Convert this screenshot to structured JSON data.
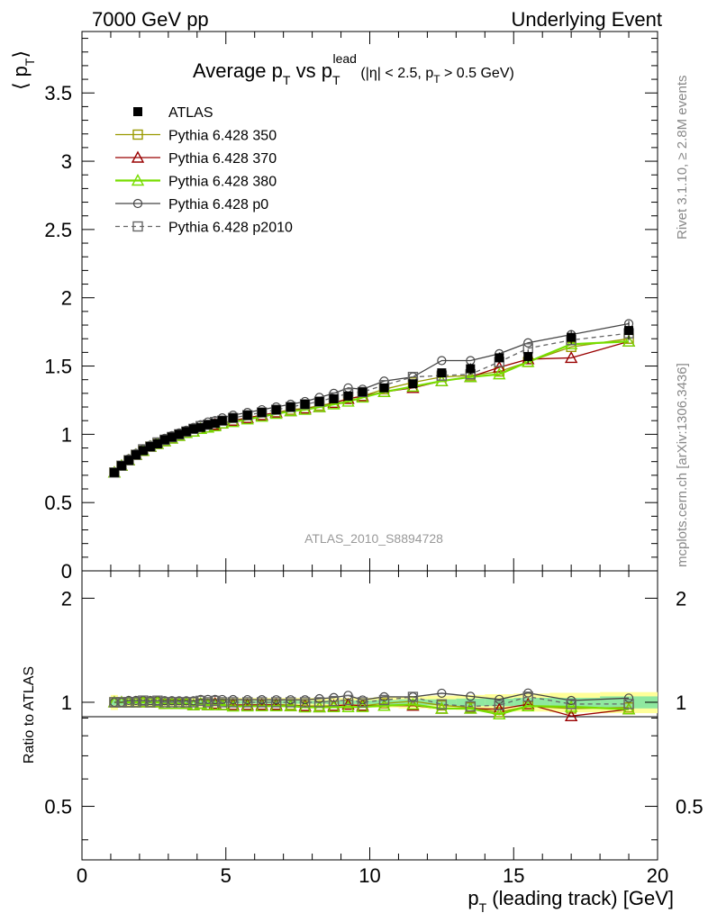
{
  "header": {
    "left": "7000 GeV pp",
    "right": "Underlying Event"
  },
  "side_labels": {
    "rivet": "Rivet 3.1.10, ≥ 2.8M events",
    "mcplots": "mcplots.cern.ch [arXiv:1306.3436]"
  },
  "chart_data": [
    {
      "type": "line",
      "panel": "main",
      "title_parts": {
        "main": "Average p",
        "main_sub": "T",
        "vs": " vs p",
        "vs_sub": "T",
        "vs_sup": "lead",
        "cuts_a": " (|η| < 2.5, p",
        "cuts_sub": "T",
        "cuts_b": " > 0.5 GeV)"
      },
      "ylabel": "⟨ p",
      "ylabel_sub": "T",
      "ylabel_close": "⟩",
      "watermark": "ATLAS_2010_S8894728",
      "xlim": [
        0,
        20
      ],
      "ylim": [
        0,
        3.95
      ],
      "xticks": [
        "0",
        "5",
        "10",
        "15",
        "20"
      ],
      "yticks": [
        "0",
        "0.5",
        "1",
        "1.5",
        "2",
        "2.5",
        "3",
        "3.5"
      ],
      "x": [
        1.125,
        1.375,
        1.625,
        1.875,
        2.125,
        2.375,
        2.625,
        2.875,
        3.125,
        3.375,
        3.625,
        3.875,
        4.125,
        4.375,
        4.625,
        4.875,
        5.25,
        5.75,
        6.25,
        6.75,
        7.25,
        7.75,
        8.25,
        8.75,
        9.25,
        9.75,
        10.5,
        11.5,
        12.5,
        13.5,
        14.5,
        15.5,
        17,
        19
      ],
      "series": [
        {
          "name": "ATLAS",
          "color": "#000000",
          "marker": "filled-square",
          "values": [
            0.72,
            0.77,
            0.81,
            0.85,
            0.88,
            0.91,
            0.93,
            0.96,
            0.98,
            1.0,
            1.02,
            1.04,
            1.05,
            1.07,
            1.08,
            1.1,
            1.12,
            1.14,
            1.16,
            1.18,
            1.2,
            1.22,
            1.24,
            1.26,
            1.28,
            1.31,
            1.34,
            1.37,
            1.45,
            1.48,
            1.56,
            1.57,
            1.71,
            1.76
          ],
          "errors": [
            0.01,
            0.01,
            0.01,
            0.01,
            0.01,
            0.01,
            0.01,
            0.01,
            0.01,
            0.01,
            0.01,
            0.01,
            0.01,
            0.01,
            0.01,
            0.01,
            0.01,
            0.01,
            0.01,
            0.01,
            0.01,
            0.01,
            0.01,
            0.02,
            0.02,
            0.02,
            0.02,
            0.03,
            0.03,
            0.04,
            0.04,
            0.05,
            0.05,
            0.07
          ]
        },
        {
          "name": "Pythia 6.428 350",
          "color": "#999900",
          "marker": "open-square",
          "dashed": false,
          "values": [
            0.72,
            0.77,
            0.81,
            0.85,
            0.88,
            0.91,
            0.93,
            0.95,
            0.97,
            0.99,
            1.01,
            1.02,
            1.04,
            1.05,
            1.06,
            1.08,
            1.1,
            1.12,
            1.14,
            1.16,
            1.18,
            1.19,
            1.21,
            1.23,
            1.26,
            1.28,
            1.33,
            1.38,
            1.42,
            1.43,
            1.46,
            1.53,
            1.64,
            1.7
          ]
        },
        {
          "name": "Pythia 6.428 370",
          "color": "#990000",
          "marker": "open-triangle",
          "dashed": false,
          "values": [
            0.72,
            0.77,
            0.81,
            0.85,
            0.88,
            0.91,
            0.93,
            0.95,
            0.97,
            0.99,
            1.01,
            1.02,
            1.04,
            1.05,
            1.07,
            1.08,
            1.1,
            1.12,
            1.14,
            1.16,
            1.17,
            1.19,
            1.2,
            1.23,
            1.26,
            1.28,
            1.31,
            1.34,
            1.39,
            1.42,
            1.49,
            1.55,
            1.56,
            1.68
          ]
        },
        {
          "name": "Pythia 6.428 380",
          "color": "#77dd00",
          "marker": "open-triangle",
          "dashed": false,
          "values": [
            0.72,
            0.77,
            0.81,
            0.85,
            0.88,
            0.91,
            0.93,
            0.95,
            0.97,
            0.99,
            1.01,
            1.02,
            1.04,
            1.05,
            1.06,
            1.08,
            1.09,
            1.11,
            1.13,
            1.15,
            1.17,
            1.18,
            1.2,
            1.22,
            1.24,
            1.27,
            1.31,
            1.35,
            1.39,
            1.42,
            1.44,
            1.53,
            1.66,
            1.68
          ]
        },
        {
          "name": "Pythia 6.428 p0",
          "color": "#444444",
          "marker": "open-circle",
          "dashed": false,
          "values": [
            0.72,
            0.77,
            0.82,
            0.86,
            0.89,
            0.92,
            0.94,
            0.97,
            0.99,
            1.01,
            1.03,
            1.05,
            1.07,
            1.09,
            1.1,
            1.12,
            1.14,
            1.16,
            1.18,
            1.2,
            1.22,
            1.24,
            1.27,
            1.3,
            1.34,
            1.33,
            1.39,
            1.42,
            1.54,
            1.54,
            1.59,
            1.67,
            1.73,
            1.81
          ]
        },
        {
          "name": "Pythia 6.428 p2010",
          "color": "#666666",
          "marker": "open-square",
          "dashed": true,
          "values": [
            0.72,
            0.77,
            0.81,
            0.85,
            0.89,
            0.91,
            0.94,
            0.96,
            0.98,
            1.0,
            1.02,
            1.04,
            1.06,
            1.07,
            1.09,
            1.1,
            1.12,
            1.14,
            1.16,
            1.18,
            1.2,
            1.22,
            1.24,
            1.27,
            1.3,
            1.31,
            1.36,
            1.42,
            1.43,
            1.44,
            1.53,
            1.63,
            1.69,
            1.74
          ]
        }
      ]
    },
    {
      "type": "line",
      "panel": "ratio",
      "ylabel": "Ratio to ATLAS",
      "xlabel": "p",
      "xlabel_sub": "T",
      "xlabel_rest": " (leading track) [GeV]",
      "xlim": [
        0,
        20
      ],
      "ylim": [
        0.35,
        2.4
      ],
      "log_y": true,
      "xticks": [
        "0",
        "5",
        "10",
        "15",
        "20"
      ],
      "yticks": [
        "0.5",
        "1",
        "2"
      ],
      "band_inner_color": "#8fe8a0",
      "band_outer_color": "#ffff99",
      "band_inner": [
        0.02,
        0.02,
        0.01,
        0.01,
        0.01,
        0.01,
        0.01,
        0.01,
        0.01,
        0.01,
        0.01,
        0.01,
        0.01,
        0.01,
        0.01,
        0.01,
        0.01,
        0.01,
        0.01,
        0.01,
        0.01,
        0.01,
        0.01,
        0.012,
        0.012,
        0.012,
        0.015,
        0.02,
        0.02,
        0.025,
        0.025,
        0.03,
        0.03,
        0.04
      ],
      "band_outer": [
        0.05,
        0.03,
        0.03,
        0.03,
        0.03,
        0.03,
        0.03,
        0.03,
        0.03,
        0.03,
        0.03,
        0.03,
        0.03,
        0.03,
        0.03,
        0.03,
        0.03,
        0.03,
        0.03,
        0.03,
        0.03,
        0.03,
        0.03,
        0.03,
        0.03,
        0.03,
        0.035,
        0.04,
        0.045,
        0.05,
        0.055,
        0.06,
        0.065,
        0.07
      ]
    }
  ]
}
